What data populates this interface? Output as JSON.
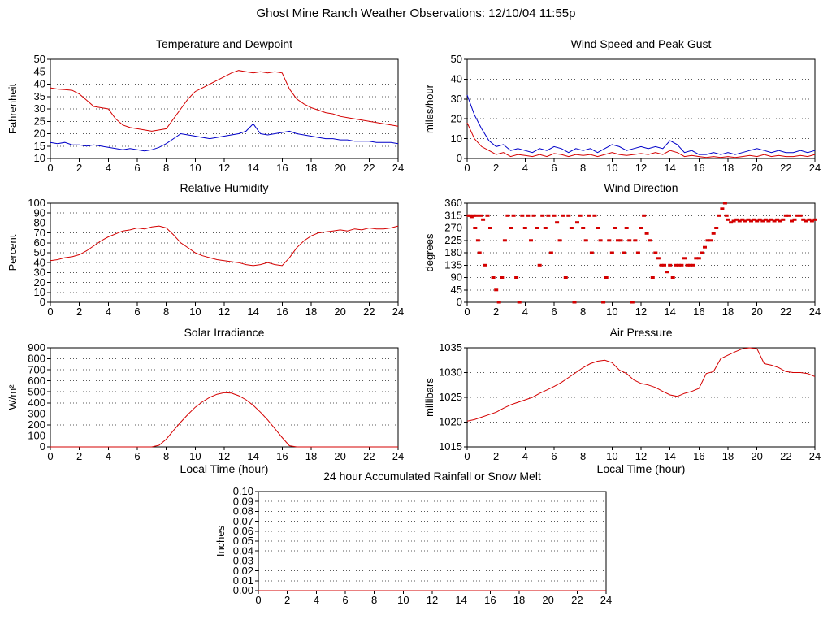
{
  "page_title": "Ghost Mine Ranch Weather Observations: 12/10/04 11:55p",
  "colors": {
    "red": "#d40000",
    "blue": "#0000c8"
  },
  "chart_data": [
    {
      "id": "temperature-dewpoint",
      "type": "line",
      "title": "Temperature and Dewpoint",
      "ylabel": "Fahrenheit",
      "ylim": [
        10,
        50
      ],
      "ytick": 5,
      "xlim": [
        0,
        24
      ],
      "xtick": 2,
      "series": [
        {
          "name": "dewpoint",
          "color": "blue",
          "xstart": 0,
          "xstep": 0.5,
          "y": [
            16.5,
            16,
            16.5,
            15.5,
            15.5,
            15,
            15.5,
            15,
            14.5,
            14,
            13.5,
            14,
            13.5,
            13,
            13.5,
            14.5,
            16,
            18,
            20,
            19.5,
            19,
            18.5,
            18,
            18.5,
            19,
            19.5,
            20,
            21,
            24,
            20,
            19.5,
            20,
            20.5,
            21,
            20,
            19.5,
            19,
            18.5,
            18,
            18,
            17.5,
            17.5,
            17,
            17,
            17,
            16.5,
            16.5,
            16.5,
            16
          ]
        },
        {
          "name": "temperature",
          "color": "red",
          "xstart": 0,
          "xstep": 0.5,
          "y": [
            38.5,
            38,
            37.8,
            37.5,
            36,
            33.5,
            31,
            30.5,
            30,
            26,
            23.5,
            22.5,
            22,
            21.5,
            21,
            21.5,
            22,
            26,
            30,
            34,
            37,
            38.5,
            40,
            41.5,
            43,
            44.5,
            45.5,
            45,
            44.5,
            45,
            44.5,
            45,
            44.5,
            38,
            34,
            32,
            30.5,
            29.5,
            28.5,
            28,
            27,
            26.5,
            26,
            25.5,
            25,
            24.5,
            24,
            23.5,
            23
          ]
        }
      ]
    },
    {
      "id": "wind-speed-gust",
      "type": "line",
      "title": "Wind Speed and Peak Gust",
      "ylabel": "miles/hour",
      "ylim": [
        0,
        50
      ],
      "ytick": 10,
      "xlim": [
        0,
        24
      ],
      "xtick": 2,
      "series": [
        {
          "name": "peak-gust",
          "color": "blue",
          "xstart": 0,
          "xstep": 0.5,
          "y": [
            32,
            22,
            15,
            9,
            6,
            7,
            4,
            5,
            4,
            3,
            5,
            4,
            6,
            5,
            3,
            5,
            4,
            5,
            3,
            5,
            7,
            6,
            4,
            5,
            6,
            5,
            6,
            5,
            9,
            7,
            3,
            4,
            2,
            2,
            3,
            2,
            3,
            2,
            3,
            4,
            5,
            4,
            3,
            4,
            3,
            3,
            4,
            3,
            4
          ]
        },
        {
          "name": "wind-speed",
          "color": "red",
          "xstart": 0,
          "xstep": 0.5,
          "y": [
            18,
            10,
            6,
            4,
            2,
            3,
            1,
            2,
            1.5,
            1,
            2,
            1,
            2.5,
            2,
            1,
            2,
            1.5,
            2,
            1,
            2,
            3,
            2,
            1.5,
            2,
            2.5,
            2,
            3,
            2,
            4,
            3,
            1,
            1.5,
            1,
            0.5,
            1,
            0.5,
            1,
            0.5,
            1,
            1.5,
            1,
            2,
            1,
            1.5,
            1,
            1,
            1.5,
            1,
            2
          ]
        }
      ]
    },
    {
      "id": "relative-humidity",
      "type": "line",
      "title": "Relative Humidity",
      "ylabel": "Percent",
      "ylim": [
        0,
        100
      ],
      "ytick": 10,
      "xlim": [
        0,
        24
      ],
      "xtick": 2,
      "series": [
        {
          "name": "humidity",
          "color": "red",
          "xstart": 0,
          "xstep": 0.5,
          "y": [
            42,
            43,
            45,
            46,
            48,
            52,
            57,
            62,
            66,
            69,
            72,
            73,
            75,
            74,
            76,
            77,
            75,
            68,
            60,
            55,
            50,
            47,
            45,
            43,
            42,
            41,
            40,
            38,
            37,
            38,
            40,
            38,
            37,
            45,
            55,
            62,
            67,
            70,
            71,
            72,
            73,
            72,
            74,
            73,
            75,
            74,
            74,
            75,
            77
          ]
        }
      ]
    },
    {
      "id": "wind-direction",
      "type": "scatter",
      "title": "Wind Direction",
      "ylabel": "degrees",
      "ylim": [
        0,
        360
      ],
      "ytick": 45,
      "xlim": [
        0,
        24
      ],
      "xtick": 2,
      "series": [
        {
          "name": "wind-direction",
          "color": "red",
          "points": [
            [
              0.1,
              315
            ],
            [
              0.2,
              315
            ],
            [
              0.3,
              310
            ],
            [
              0.45,
              315
            ],
            [
              0.55,
              270
            ],
            [
              0.65,
              315
            ],
            [
              0.75,
              225
            ],
            [
              0.85,
              180
            ],
            [
              0.95,
              315
            ],
            [
              1.1,
              300
            ],
            [
              1.25,
              135
            ],
            [
              1.4,
              315
            ],
            [
              1.6,
              270
            ],
            [
              1.8,
              90
            ],
            [
              2.0,
              45
            ],
            [
              2.2,
              0
            ],
            [
              2.4,
              90
            ],
            [
              2.6,
              225
            ],
            [
              2.8,
              315
            ],
            [
              3.0,
              270
            ],
            [
              3.2,
              315
            ],
            [
              3.4,
              90
            ],
            [
              3.6,
              0
            ],
            [
              3.8,
              315
            ],
            [
              4.0,
              270
            ],
            [
              4.2,
              315
            ],
            [
              4.4,
              225
            ],
            [
              4.6,
              315
            ],
            [
              4.8,
              270
            ],
            [
              5.0,
              135
            ],
            [
              5.2,
              315
            ],
            [
              5.4,
              270
            ],
            [
              5.6,
              315
            ],
            [
              5.8,
              180
            ],
            [
              6.0,
              315
            ],
            [
              6.2,
              290
            ],
            [
              6.4,
              225
            ],
            [
              6.6,
              315
            ],
            [
              6.8,
              90
            ],
            [
              7.0,
              315
            ],
            [
              7.2,
              270
            ],
            [
              7.4,
              0
            ],
            [
              7.6,
              290
            ],
            [
              7.8,
              315
            ],
            [
              8.0,
              270
            ],
            [
              8.2,
              225
            ],
            [
              8.4,
              315
            ],
            [
              8.6,
              180
            ],
            [
              8.8,
              315
            ],
            [
              9.0,
              270
            ],
            [
              9.2,
              225
            ],
            [
              9.4,
              0
            ],
            [
              9.6,
              90
            ],
            [
              9.8,
              225
            ],
            [
              10.0,
              180
            ],
            [
              10.2,
              270
            ],
            [
              10.4,
              225
            ],
            [
              10.6,
              225
            ],
            [
              10.8,
              180
            ],
            [
              11.0,
              270
            ],
            [
              11.2,
              225
            ],
            [
              11.4,
              0
            ],
            [
              11.6,
              225
            ],
            [
              11.8,
              180
            ],
            [
              12.0,
              270
            ],
            [
              12.2,
              315
            ],
            [
              12.4,
              250
            ],
            [
              12.6,
              225
            ],
            [
              12.8,
              90
            ],
            [
              13.0,
              180
            ],
            [
              13.2,
              160
            ],
            [
              13.4,
              135
            ],
            [
              13.6,
              135
            ],
            [
              13.8,
              110
            ],
            [
              14.0,
              135
            ],
            [
              14.2,
              90
            ],
            [
              14.4,
              135
            ],
            [
              14.6,
              135
            ],
            [
              14.8,
              135
            ],
            [
              15.0,
              160
            ],
            [
              15.2,
              135
            ],
            [
              15.4,
              135
            ],
            [
              15.6,
              135
            ],
            [
              15.8,
              160
            ],
            [
              16.0,
              160
            ],
            [
              16.2,
              180
            ],
            [
              16.4,
              200
            ],
            [
              16.6,
              225
            ],
            [
              16.8,
              225
            ],
            [
              17.0,
              250
            ],
            [
              17.2,
              270
            ],
            [
              17.4,
              315
            ],
            [
              17.6,
              340
            ],
            [
              17.8,
              360
            ],
            [
              17.9,
              315
            ],
            [
              18.0,
              300
            ],
            [
              18.2,
              290
            ],
            [
              18.4,
              295
            ],
            [
              18.6,
              300
            ],
            [
              18.8,
              295
            ],
            [
              19.0,
              300
            ],
            [
              19.2,
              295
            ],
            [
              19.4,
              300
            ],
            [
              19.6,
              295
            ],
            [
              19.8,
              300
            ],
            [
              20.0,
              295
            ],
            [
              20.2,
              300
            ],
            [
              20.4,
              295
            ],
            [
              20.6,
              300
            ],
            [
              20.8,
              295
            ],
            [
              21.0,
              300
            ],
            [
              21.2,
              295
            ],
            [
              21.4,
              300
            ],
            [
              21.6,
              295
            ],
            [
              21.8,
              300
            ],
            [
              22.0,
              315
            ],
            [
              22.2,
              315
            ],
            [
              22.4,
              295
            ],
            [
              22.6,
              300
            ],
            [
              22.8,
              315
            ],
            [
              23.0,
              315
            ],
            [
              23.2,
              300
            ],
            [
              23.4,
              295
            ],
            [
              23.6,
              300
            ],
            [
              23.8,
              295
            ],
            [
              24.0,
              300
            ]
          ]
        }
      ]
    },
    {
      "id": "solar-irradiance",
      "type": "line",
      "title": "Solar Irradiance",
      "ylabel": "W/m²",
      "xlabel": "Local Time (hour)",
      "ylim": [
        0,
        900
      ],
      "ytick": 100,
      "xlim": [
        0,
        24
      ],
      "xtick": 2,
      "series": [
        {
          "name": "solar",
          "color": "red",
          "xstart": 0,
          "xstep": 0.5,
          "y": [
            0,
            0,
            0,
            0,
            0,
            0,
            0,
            0,
            0,
            0,
            0,
            0,
            0,
            0,
            0,
            15,
            70,
            150,
            225,
            295,
            360,
            410,
            450,
            478,
            492,
            488,
            465,
            428,
            378,
            315,
            245,
            165,
            85,
            10,
            0,
            0,
            0,
            0,
            0,
            0,
            0,
            0,
            0,
            0,
            0,
            0,
            0,
            0,
            0
          ]
        }
      ]
    },
    {
      "id": "air-pressure",
      "type": "line",
      "title": "Air Pressure",
      "ylabel": "millibars",
      "xlabel": "Local Time (hour)",
      "ylim": [
        1015,
        1035
      ],
      "ytick": 5,
      "xlim": [
        0,
        24
      ],
      "xtick": 2,
      "series": [
        {
          "name": "pressure",
          "color": "red",
          "xstart": 0,
          "xstep": 0.5,
          "y": [
            1020.2,
            1020.5,
            1021,
            1021.5,
            1022,
            1022.8,
            1023.5,
            1024,
            1024.5,
            1025,
            1025.8,
            1026.5,
            1027.2,
            1028,
            1029,
            1030,
            1031,
            1031.8,
            1032.3,
            1032.5,
            1032,
            1030.5,
            1029.8,
            1028.5,
            1027.8,
            1027.5,
            1027,
            1026.2,
            1025.5,
            1025.2,
            1025.8,
            1026.2,
            1026.8,
            1029.8,
            1030.2,
            1032.8,
            1033.5,
            1034.2,
            1034.8,
            1035,
            1034.8,
            1031.8,
            1031.5,
            1031,
            1030.2,
            1030,
            1030,
            1029.8,
            1029.2
          ]
        }
      ]
    },
    {
      "id": "rainfall",
      "type": "line",
      "title": "24 hour Accumulated Rainfall or Snow Melt",
      "ylabel": "Inches",
      "ylim": [
        0,
        0.1
      ],
      "ytick": 0.01,
      "ydec": 2,
      "xlim": [
        0,
        24
      ],
      "xtick": 2,
      "series": [
        {
          "name": "rainfall",
          "color": "red",
          "x": [
            0,
            24
          ],
          "y": [
            0,
            0
          ]
        }
      ]
    }
  ]
}
